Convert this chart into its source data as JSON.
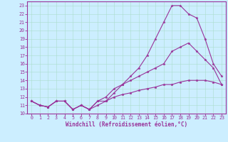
{
  "xlabel": "Windchill (Refroidissement éolien,°C)",
  "bg_color": "#cceeff",
  "line_color": "#993399",
  "xlim": [
    -0.5,
    23.5
  ],
  "ylim": [
    10,
    23.5
  ],
  "xticks": [
    0,
    1,
    2,
    3,
    4,
    5,
    6,
    7,
    8,
    9,
    10,
    11,
    12,
    13,
    14,
    15,
    16,
    17,
    18,
    19,
    20,
    21,
    22,
    23
  ],
  "yticks": [
    10,
    11,
    12,
    13,
    14,
    15,
    16,
    17,
    18,
    19,
    20,
    21,
    22,
    23
  ],
  "line1": {
    "x": [
      0,
      1,
      2,
      3,
      4,
      5,
      6,
      7,
      8,
      9,
      10,
      11,
      12,
      13,
      14,
      15,
      16,
      17,
      18,
      19,
      20,
      21,
      22,
      23
    ],
    "y": [
      11.5,
      11.0,
      10.8,
      11.5,
      11.5,
      10.5,
      11.0,
      10.5,
      11.5,
      11.5,
      12.5,
      13.5,
      14.5,
      15.5,
      17.0,
      19.0,
      21.0,
      23.0,
      23.0,
      22.0,
      21.5,
      19.0,
      16.0,
      14.5
    ]
  },
  "line2": {
    "x": [
      0,
      1,
      2,
      3,
      4,
      5,
      6,
      7,
      8,
      9,
      10,
      11,
      12,
      13,
      14,
      15,
      16,
      17,
      18,
      19,
      20,
      21,
      22,
      23
    ],
    "y": [
      11.5,
      11.0,
      10.8,
      11.5,
      11.5,
      10.5,
      11.0,
      10.5,
      11.5,
      12.0,
      13.0,
      13.5,
      14.0,
      14.5,
      15.0,
      15.5,
      16.0,
      17.5,
      18.0,
      18.5,
      17.5,
      16.5,
      15.5,
      13.5
    ]
  },
  "line3": {
    "x": [
      0,
      1,
      2,
      3,
      4,
      5,
      6,
      7,
      8,
      9,
      10,
      11,
      12,
      13,
      14,
      15,
      16,
      17,
      18,
      19,
      20,
      21,
      22,
      23
    ],
    "y": [
      11.5,
      11.0,
      10.8,
      11.5,
      11.5,
      10.5,
      11.0,
      10.5,
      11.0,
      11.5,
      12.0,
      12.3,
      12.5,
      12.8,
      13.0,
      13.2,
      13.5,
      13.5,
      13.8,
      14.0,
      14.0,
      14.0,
      13.8,
      13.5
    ]
  }
}
